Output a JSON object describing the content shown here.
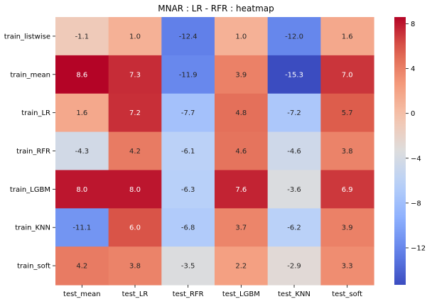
{
  "chart_data": {
    "type": "heatmap",
    "title": "MNAR : LR - RFR : heatmap",
    "xlabel": "",
    "ylabel": "",
    "rows": [
      "train_listwise",
      "train_mean",
      "train_LR",
      "train_RFR",
      "train_LGBM",
      "train_KNN",
      "train_soft"
    ],
    "columns": [
      "test_mean",
      "test_LR",
      "test_RFR",
      "test_LGBM",
      "test_KNN",
      "test_soft"
    ],
    "values": [
      [
        -1.1,
        1.0,
        -12.4,
        1.0,
        -12.0,
        1.6
      ],
      [
        8.6,
        7.3,
        -11.9,
        3.9,
        -15.3,
        7.0
      ],
      [
        1.6,
        7.2,
        -7.7,
        4.8,
        -7.2,
        5.7
      ],
      [
        -4.3,
        4.2,
        -6.1,
        4.6,
        -4.6,
        3.8
      ],
      [
        8.0,
        8.0,
        -6.3,
        7.6,
        -3.6,
        6.9
      ],
      [
        -11.1,
        6.0,
        -6.8,
        3.7,
        -6.2,
        3.9
      ],
      [
        4.2,
        3.8,
        -3.5,
        2.2,
        -2.9,
        3.3
      ]
    ],
    "colormap": "coolwarm",
    "vmin": -15.3,
    "vmax": 8.6,
    "colorbar_ticks": [
      8,
      4,
      0,
      -4,
      -8,
      -12
    ],
    "colorbar_tick_labels": [
      "8",
      "4",
      "0",
      "−4",
      "−8",
      "−12"
    ],
    "annotation_colors": {
      "light_bg": "#262626",
      "dark_bg": "#ffffff"
    }
  }
}
